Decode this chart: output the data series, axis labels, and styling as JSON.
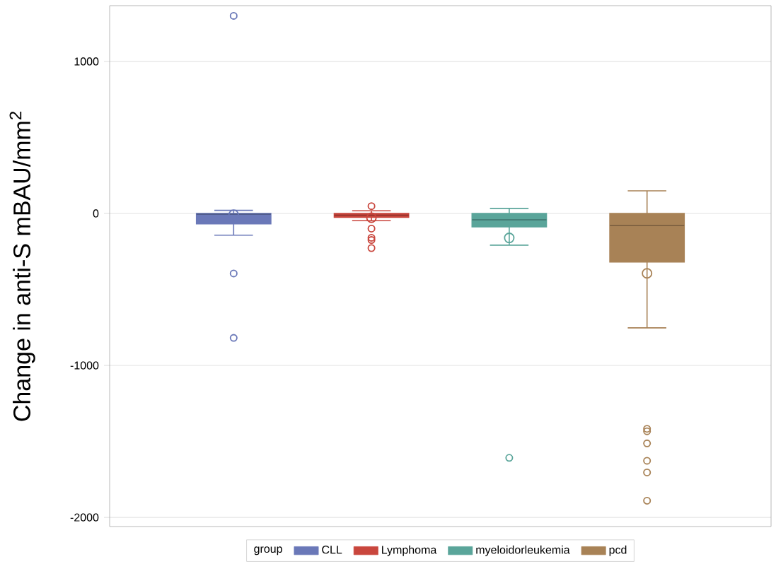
{
  "chart_data": {
    "type": "box",
    "ylabel": "Change in anti-S mBAU/mm$^{2}$",
    "legend_title": "group",
    "categories": [
      null,
      null,
      null,
      null
    ],
    "series": [
      {
        "name": "CLL",
        "color": "#6a78b8",
        "boxes": [
          {
            "low": -143,
            "q1": -68,
            "median": -5,
            "q3": 0,
            "high": 20,
            "mean": -8,
            "outliers": [
              1300,
              -395,
              -819
            ]
          },
          null,
          null,
          null
        ]
      },
      {
        "name": "Lymphoma",
        "color": "#c9463d",
        "boxes": [
          null,
          {
            "low": -48,
            "q1": -25,
            "median": -12,
            "q3": 0,
            "high": 17,
            "mean": -28,
            "outliers": [
              48,
              -100,
              -160,
              -175,
              -228
            ]
          },
          null,
          null
        ]
      },
      {
        "name": "myeloidorleukemia",
        "color": "#5aa59a",
        "boxes": [
          null,
          null,
          {
            "low": -209,
            "q1": -88,
            "median": -42,
            "q3": 0,
            "high": 33,
            "mean": -161,
            "outliers": [
              -1608
            ]
          },
          null
        ]
      },
      {
        "name": "pcd",
        "color": "#a88256",
        "boxes": [
          null,
          null,
          null,
          {
            "low": -753,
            "q1": -320,
            "median": -80,
            "q3": 0,
            "high": 149,
            "mean": -394,
            "outliers": [
              -1417,
              -1433,
              -1513,
              -1627,
              -1704,
              -1890
            ]
          }
        ]
      }
    ],
    "ylim": [
      -2060,
      1367
    ],
    "yticks": [
      -2000,
      -1000,
      0,
      1000
    ],
    "grid": "y",
    "legend": "bottom",
    "marker": "circle"
  }
}
